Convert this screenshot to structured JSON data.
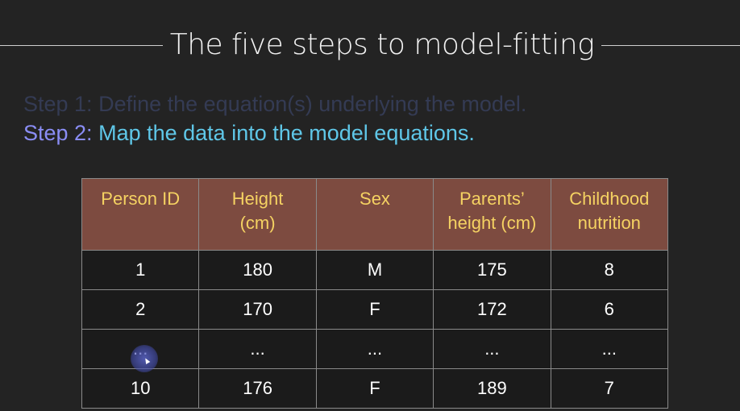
{
  "slide": {
    "title": "The five steps to model-fitting",
    "step1": {
      "label": "Step 1:",
      "text": "Define the equation(s) underlying the model."
    },
    "step2": {
      "label": "Step 2:",
      "text": "Map the data into the model equations."
    }
  },
  "table": {
    "headers": [
      {
        "line1": "Person ID",
        "line2": ""
      },
      {
        "line1": "Height",
        "line2": "(cm)"
      },
      {
        "line1": "Sex",
        "line2": ""
      },
      {
        "line1": "Parents’",
        "line2": "height (cm)"
      },
      {
        "line1": "Childhood",
        "line2": "nutrition"
      }
    ],
    "rows": [
      [
        "1",
        "180",
        "M",
        "175",
        "8"
      ],
      [
        "2",
        "170",
        "F",
        "172",
        "6"
      ],
      [
        "...",
        "...",
        "...",
        "...",
        "..."
      ],
      [
        "10",
        "176",
        "F",
        "189",
        "7"
      ]
    ]
  },
  "colors": {
    "background": "#232323",
    "header_fill": "#7d4b40",
    "header_text": "#f5d262",
    "step1_text": "#343b54",
    "step2_label": "#8a8df5",
    "step2_text": "#5fc7e8"
  },
  "icons": {
    "cursor": "mouse-cursor-icon"
  }
}
